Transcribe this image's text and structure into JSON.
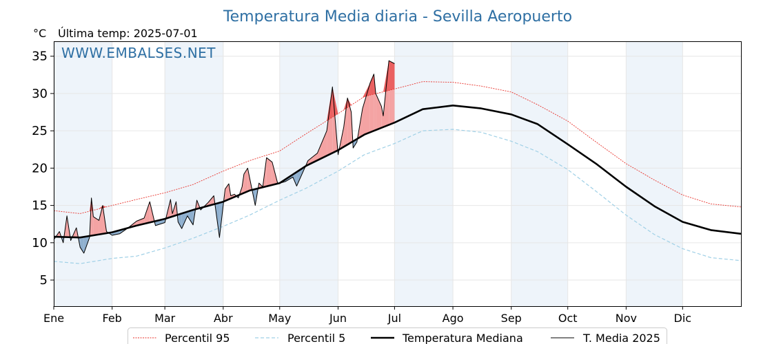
{
  "chart_data": {
    "type": "line",
    "title": "Temperatura Media diaria - Sevilla Aeropuerto",
    "unit_label": "°C",
    "subtitle": "Última temp: 2025-07-01",
    "watermark": "WWW.EMBALSES.NET",
    "ylim": [
      1.5,
      37
    ],
    "yticks": [
      5,
      10,
      15,
      20,
      25,
      30,
      35
    ],
    "xlim": [
      1,
      366
    ],
    "month_labels": [
      "Ene",
      "Feb",
      "Mar",
      "Abr",
      "May",
      "Jun",
      "Jul",
      "Ago",
      "Sep",
      "Oct",
      "Nov",
      "Dic"
    ],
    "month_starts": [
      1,
      32,
      60,
      91,
      121,
      152,
      182,
      213,
      244,
      274,
      305,
      335
    ],
    "grid": true,
    "legend_position": "bottom-center",
    "colors": {
      "p95": "#e8322b",
      "p5": "#9fd0e6",
      "median": "#000000",
      "current": "#000000",
      "above": "#f4a3a3",
      "above_dark": "#ea6060",
      "below": "#8fb0cf",
      "below_dark": "#4d7ba8",
      "band": "#eef4fa"
    },
    "series": [
      {
        "name": "Percentil 95",
        "key": "p95",
        "x": [
          1,
          15,
          32,
          45,
          60,
          75,
          91,
          105,
          121,
          135,
          152,
          166,
          182,
          197,
          213,
          228,
          244,
          258,
          274,
          289,
          305,
          320,
          335,
          350,
          366
        ],
        "y": [
          14.3,
          13.9,
          15.0,
          15.8,
          16.7,
          17.8,
          19.6,
          21.0,
          22.3,
          24.6,
          27.3,
          29.6,
          30.6,
          31.6,
          31.5,
          31.0,
          30.2,
          28.5,
          26.3,
          23.5,
          20.6,
          18.4,
          16.4,
          15.2,
          14.8
        ]
      },
      {
        "name": "Percentil 5",
        "key": "p5",
        "x": [
          1,
          15,
          32,
          45,
          60,
          75,
          91,
          105,
          121,
          135,
          152,
          166,
          182,
          197,
          213,
          228,
          244,
          258,
          274,
          289,
          305,
          320,
          335,
          350,
          366
        ],
        "y": [
          7.5,
          7.2,
          7.9,
          8.2,
          9.3,
          10.6,
          12.2,
          13.7,
          15.7,
          17.3,
          19.6,
          21.8,
          23.3,
          25.0,
          25.2,
          24.8,
          23.6,
          22.2,
          19.8,
          16.9,
          13.7,
          11.1,
          9.2,
          8.0,
          7.6
        ]
      },
      {
        "name": "Temperatura Mediana",
        "key": "median",
        "x": [
          1,
          15,
          32,
          45,
          60,
          75,
          91,
          105,
          121,
          135,
          152,
          166,
          182,
          197,
          213,
          228,
          244,
          258,
          274,
          289,
          305,
          320,
          335,
          350,
          366
        ],
        "y": [
          10.8,
          10.7,
          11.4,
          12.3,
          13.2,
          14.4,
          15.5,
          17.0,
          18.0,
          20.3,
          22.4,
          24.5,
          26.1,
          27.9,
          28.4,
          28.0,
          27.2,
          25.9,
          23.2,
          20.6,
          17.5,
          14.9,
          12.8,
          11.7,
          11.2
        ]
      },
      {
        "name": "T. Media 2025",
        "key": "current",
        "x": [
          1,
          4,
          6,
          8,
          10,
          13,
          15,
          17,
          20,
          21,
          22,
          25,
          27,
          29,
          32,
          36,
          40,
          45,
          49,
          52,
          55,
          60,
          63,
          64,
          66,
          67,
          69,
          72,
          75,
          77,
          79,
          83,
          86,
          89,
          92,
          94,
          95,
          97,
          99,
          101,
          102,
          104,
          106,
          108,
          110,
          112,
          114,
          117,
          120,
          124,
          128,
          130,
          136,
          139,
          141,
          146,
          149,
          152,
          155,
          157,
          159,
          160,
          162,
          165,
          169,
          171,
          172,
          175,
          176,
          179,
          182
        ],
        "y": [
          10.4,
          11.5,
          10.0,
          13.6,
          10.3,
          12.0,
          9.4,
          8.6,
          10.7,
          16.0,
          13.5,
          13.0,
          15.0,
          11.5,
          11.0,
          11.2,
          11.9,
          12.9,
          13.3,
          15.5,
          12.3,
          12.7,
          15.8,
          13.9,
          15.5,
          12.8,
          11.9,
          13.6,
          12.4,
          15.7,
          14.4,
          15.4,
          16.3,
          10.7,
          17.2,
          17.9,
          16.3,
          16.5,
          16.0,
          17.5,
          19.2,
          20.0,
          17.5,
          15.0,
          18.0,
          17.5,
          21.4,
          20.8,
          17.9,
          18.2,
          18.8,
          17.6,
          21.0,
          21.6,
          22.0,
          25.0,
          30.9,
          21.8,
          25.5,
          29.4,
          27.5,
          22.7,
          23.5,
          28.0,
          31.4,
          32.6,
          30.0,
          28.3,
          27.0,
          34.4,
          34.0
        ]
      }
    ]
  }
}
